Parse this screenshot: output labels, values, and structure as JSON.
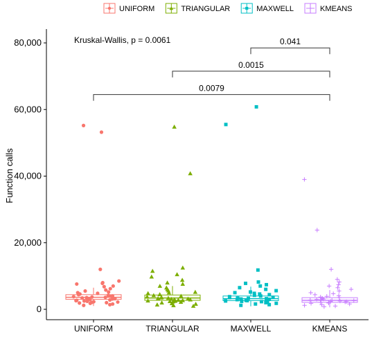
{
  "chart_data": {
    "type": "box-jitter",
    "ylabel": "Function calls",
    "xlabel": "",
    "ylim": [
      0,
      85000
    ],
    "yticks": [
      0,
      20000,
      40000,
      60000,
      80000
    ],
    "ytick_labels": [
      "0",
      "20,000",
      "40,000",
      "60,000",
      "80,000"
    ],
    "legend_position": "top",
    "categories": [
      "UNIFORM",
      "TRIANGULAR",
      "MAXWELL",
      "KMEANS"
    ],
    "series": [
      {
        "name": "UNIFORM",
        "color": "#F8766D",
        "marker": "circle",
        "box": {
          "q1": 3000,
          "median": 3600,
          "q3": 4400,
          "whisker_low": 1000,
          "whisker_high": 6500
        },
        "points": [
          53200,
          55200,
          12000,
          8500,
          8000,
          7800,
          7600,
          7000,
          6800,
          6200,
          5800,
          5500,
          5200,
          5000,
          4800,
          4600,
          4400,
          4200,
          4000,
          3900,
          3800,
          3700,
          3600,
          3500,
          3400,
          3300,
          3200,
          3100,
          3000,
          2900,
          2800,
          2700,
          2600,
          2500,
          2400,
          2300,
          2200,
          2100,
          2000,
          1900,
          1800,
          1600,
          1400,
          1200
        ]
      },
      {
        "name": "TRIANGULAR",
        "color": "#7CAE00",
        "marker": "triangle",
        "box": {
          "q1": 2700,
          "median": 3400,
          "q3": 4300,
          "whisker_low": 900,
          "whisker_high": 7000
        },
        "points": [
          54800,
          40800,
          12500,
          11500,
          10500,
          9800,
          8800,
          8000,
          7600,
          7000,
          6500,
          6000,
          5600,
          5200,
          5000,
          4800,
          4500,
          4200,
          4000,
          3800,
          3600,
          3500,
          3400,
          3300,
          3200,
          3100,
          3000,
          2900,
          2800,
          2700,
          2600,
          2500,
          2400,
          2300,
          2200,
          2000,
          1800,
          1600,
          1400,
          1200,
          1000
        ]
      },
      {
        "name": "MAXWELL",
        "color": "#00BFC4",
        "marker": "square",
        "box": {
          "q1": 2600,
          "median": 3200,
          "q3": 4000,
          "whisker_low": 900,
          "whisker_high": 6800
        },
        "points": [
          60800,
          55500,
          11800,
          8200,
          7800,
          7400,
          7000,
          6500,
          6000,
          5600,
          5200,
          5000,
          4800,
          4600,
          4400,
          4200,
          4000,
          3800,
          3600,
          3500,
          3400,
          3300,
          3200,
          3100,
          3000,
          2900,
          2800,
          2700,
          2600,
          2500,
          2400,
          2300,
          2200,
          2000,
          1800,
          1600,
          1400,
          1200
        ]
      },
      {
        "name": "KMEANS",
        "color": "#C77CFF",
        "marker": "plus",
        "box": {
          "q1": 2100,
          "median": 2700,
          "q3": 3500,
          "whisker_low": 600,
          "whisker_high": 5800
        },
        "points": [
          39000,
          23800,
          12000,
          9000,
          8200,
          7400,
          7000,
          6500,
          6000,
          5500,
          5000,
          4700,
          4400,
          4100,
          3900,
          3700,
          3500,
          3300,
          3100,
          3000,
          2900,
          2800,
          2700,
          2600,
          2500,
          2400,
          2300,
          2200,
          2100,
          2000,
          1900,
          1800,
          1600,
          1400,
          1200,
          1000,
          800
        ]
      }
    ],
    "annotations": {
      "overall_test": "Kruskal-Wallis, p = 0.0061",
      "comparisons": [
        {
          "from": "MAXWELL",
          "to": "KMEANS",
          "label": "0.041",
          "y": 78500
        },
        {
          "from": "TRIANGULAR",
          "to": "KMEANS",
          "label": "0.0015",
          "y": 71500
        },
        {
          "from": "UNIFORM",
          "to": "KMEANS",
          "label": "0.0079",
          "y": 64500
        }
      ]
    }
  }
}
